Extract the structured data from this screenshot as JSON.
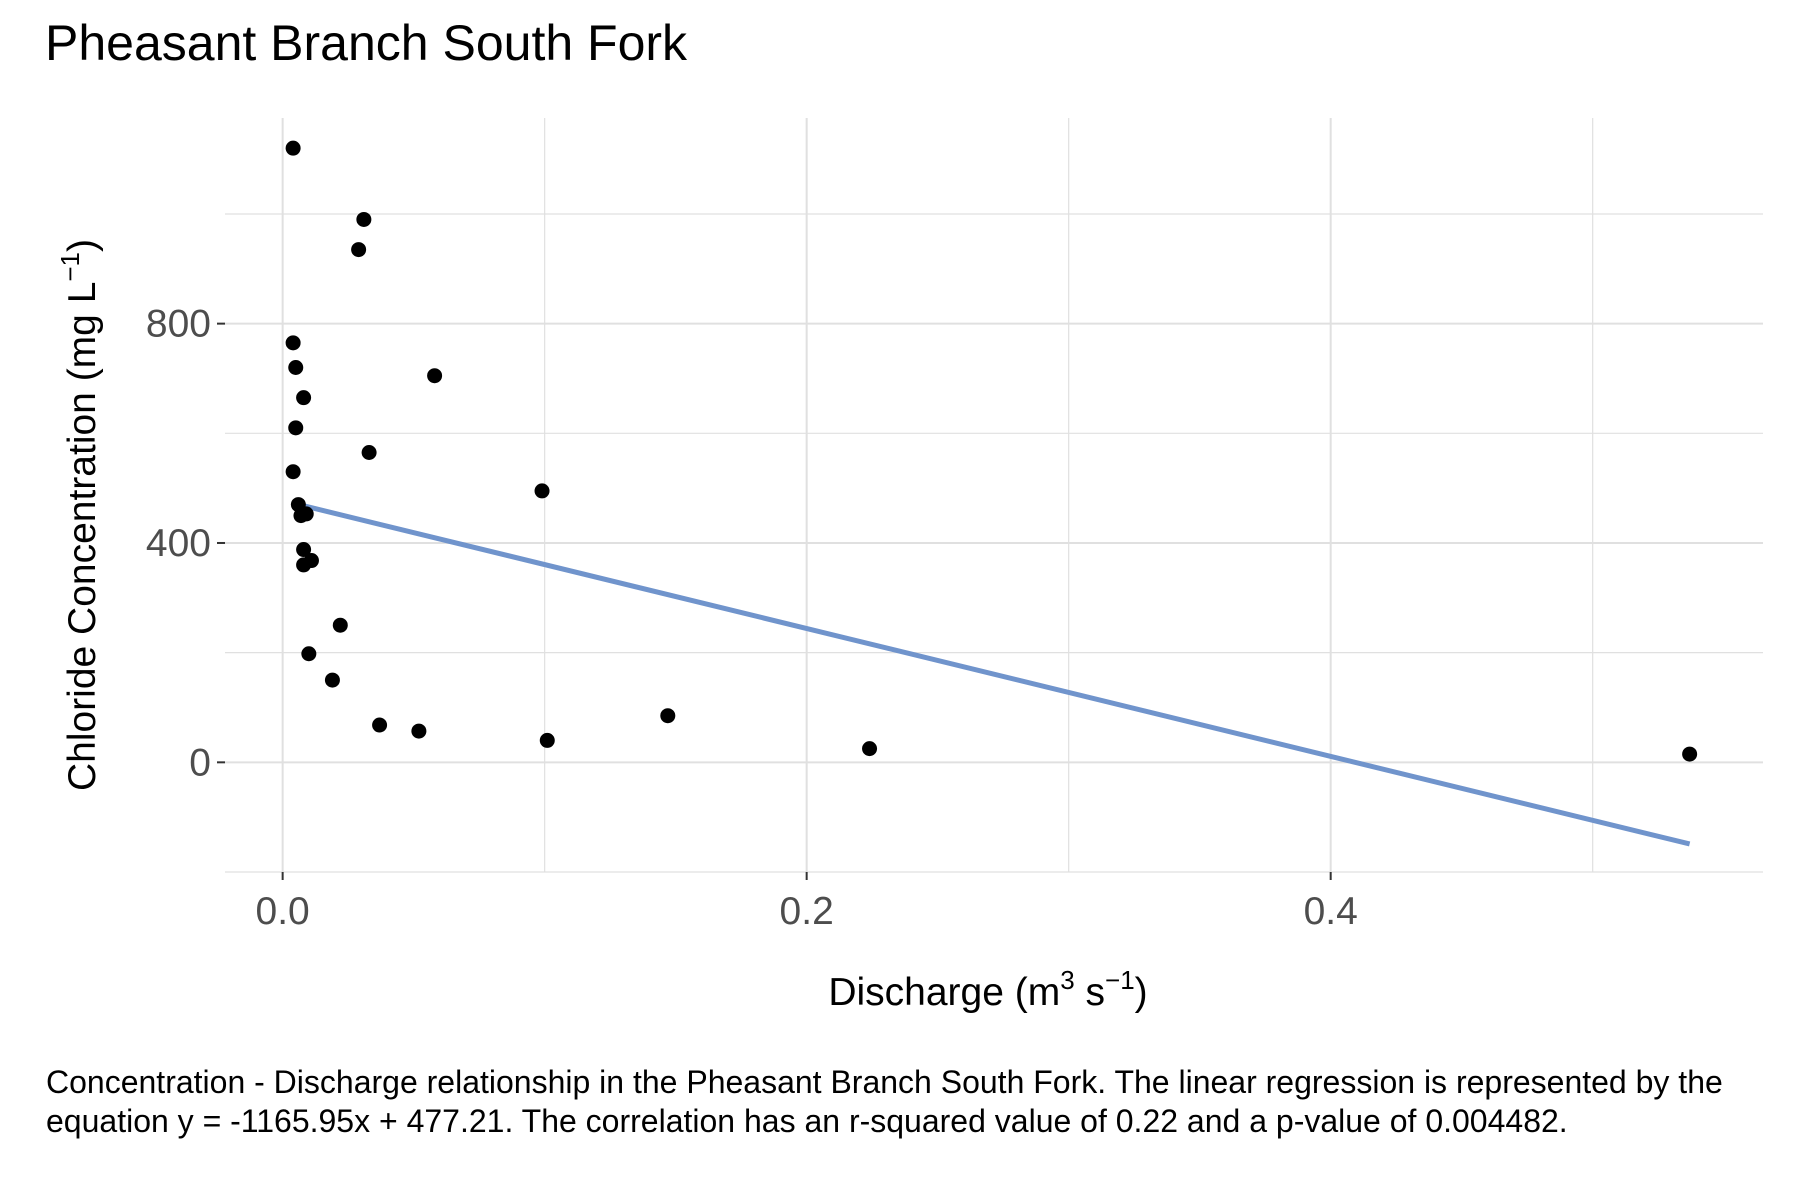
{
  "chart_data": {
    "type": "scatter",
    "title": "Pheasant Branch South Fork",
    "xlabel": {
      "base": "Discharge (m",
      "sup1": "3",
      "mid": " s",
      "sup2": "−1",
      "end": ")"
    },
    "ylabel": {
      "base": "Chloride Concentration (mg L",
      "sup": "−1",
      "end": ")"
    },
    "xlim": [
      -0.022,
      0.565
    ],
    "ylim": [
      -200,
      1175
    ],
    "x_ticks": [
      {
        "value": 0.0,
        "label": "0.0"
      },
      {
        "value": 0.2,
        "label": "0.2"
      },
      {
        "value": 0.4,
        "label": "0.4"
      }
    ],
    "y_ticks": [
      {
        "value": 0,
        "label": "0"
      },
      {
        "value": 400,
        "label": "400"
      },
      {
        "value": 800,
        "label": "800"
      }
    ],
    "x_minor_gridlines": [
      0.1,
      0.3,
      0.5
    ],
    "y_minor_gridlines": [
      -200,
      200,
      600,
      1000
    ],
    "grid": true,
    "points": [
      {
        "x": 0.004,
        "y": 1120
      },
      {
        "x": 0.031,
        "y": 990
      },
      {
        "x": 0.029,
        "y": 935
      },
      {
        "x": 0.004,
        "y": 765
      },
      {
        "x": 0.005,
        "y": 720
      },
      {
        "x": 0.058,
        "y": 705
      },
      {
        "x": 0.008,
        "y": 665
      },
      {
        "x": 0.005,
        "y": 610
      },
      {
        "x": 0.033,
        "y": 565
      },
      {
        "x": 0.004,
        "y": 530
      },
      {
        "x": 0.099,
        "y": 495
      },
      {
        "x": 0.006,
        "y": 470
      },
      {
        "x": 0.007,
        "y": 450
      },
      {
        "x": 0.009,
        "y": 453
      },
      {
        "x": 0.008,
        "y": 388
      },
      {
        "x": 0.011,
        "y": 368
      },
      {
        "x": 0.008,
        "y": 360
      },
      {
        "x": 0.022,
        "y": 250
      },
      {
        "x": 0.01,
        "y": 198
      },
      {
        "x": 0.019,
        "y": 150
      },
      {
        "x": 0.037,
        "y": 68
      },
      {
        "x": 0.052,
        "y": 57
      },
      {
        "x": 0.101,
        "y": 40
      },
      {
        "x": 0.147,
        "y": 85
      },
      {
        "x": 0.224,
        "y": 25
      },
      {
        "x": 0.537,
        "y": 15
      }
    ],
    "trend_line": {
      "slope": -1165.95,
      "intercept": 477.21,
      "x_range": [
        0.004,
        0.537
      ],
      "color": "#7094CC"
    },
    "colors": {
      "points": "#000000",
      "grid": "#E0E0E0",
      "tick_label": "#4D4D4D"
    }
  },
  "caption": "Concentration - Discharge relationship in the Pheasant Branch South Fork. The linear regression is represented by the equation y = -1165.95x + 477.21. The correlation has an r-squared value of 0.22 and a p-value of 0.004482."
}
